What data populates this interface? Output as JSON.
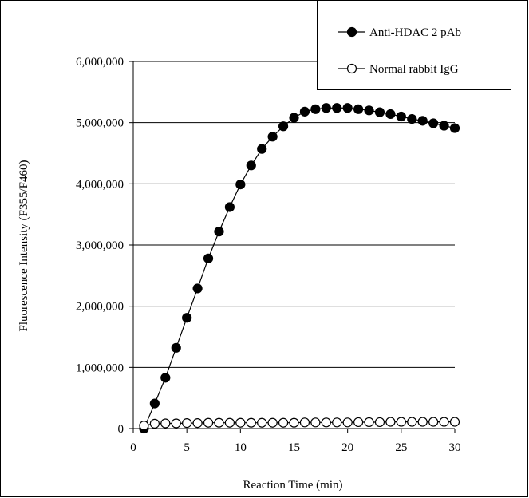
{
  "chart_data": {
    "type": "line",
    "xlabel": "Reaction Time (min)",
    "ylabel": "Fluorescence Intensity (F355/F460)",
    "xlim": [
      0,
      30
    ],
    "ylim": [
      0,
      6000000
    ],
    "x_ticks": [
      0,
      5,
      10,
      15,
      20,
      25,
      30
    ],
    "y_ticks": [
      0,
      1000000,
      2000000,
      3000000,
      4000000,
      5000000,
      6000000
    ],
    "x_tick_labels": [
      "0",
      "5",
      "10",
      "15",
      "20",
      "25",
      "30"
    ],
    "y_tick_labels": [
      "0",
      "1,000,000",
      "2,000,000",
      "3,000,000",
      "4,000,000",
      "5,000,000",
      "6,000,000"
    ],
    "grid": "horizontal",
    "legend_position": "top-right",
    "series": [
      {
        "name": "Anti-HDAC 2 pAb",
        "marker": "filled-circle",
        "color": "#000000",
        "x": [
          1,
          2,
          3,
          4,
          5,
          6,
          7,
          8,
          9,
          10,
          11,
          12,
          13,
          14,
          15,
          16,
          17,
          18,
          19,
          20,
          21,
          22,
          23,
          24,
          25,
          26,
          27,
          28,
          29,
          30
        ],
        "y": [
          0,
          410000,
          830000,
          1320000,
          1810000,
          2290000,
          2780000,
          3220000,
          3620000,
          3990000,
          4300000,
          4570000,
          4770000,
          4940000,
          5080000,
          5180000,
          5220000,
          5240000,
          5240000,
          5240000,
          5220000,
          5200000,
          5170000,
          5140000,
          5100000,
          5060000,
          5030000,
          4990000,
          4950000,
          4910000
        ]
      },
      {
        "name": "Normal rabbit IgG",
        "marker": "open-circle",
        "color": "#000000",
        "x": [
          1,
          2,
          3,
          4,
          5,
          6,
          7,
          8,
          9,
          10,
          11,
          12,
          13,
          14,
          15,
          16,
          17,
          18,
          19,
          20,
          21,
          22,
          23,
          24,
          25,
          26,
          27,
          28,
          29,
          30
        ],
        "y": [
          50000,
          80000,
          85000,
          85000,
          90000,
          90000,
          95000,
          95000,
          95000,
          95000,
          95000,
          95000,
          95000,
          95000,
          95000,
          100000,
          100000,
          100000,
          100000,
          100000,
          105000,
          105000,
          105000,
          110000,
          110000,
          110000,
          110000,
          110000,
          110000,
          110000
        ]
      }
    ]
  }
}
